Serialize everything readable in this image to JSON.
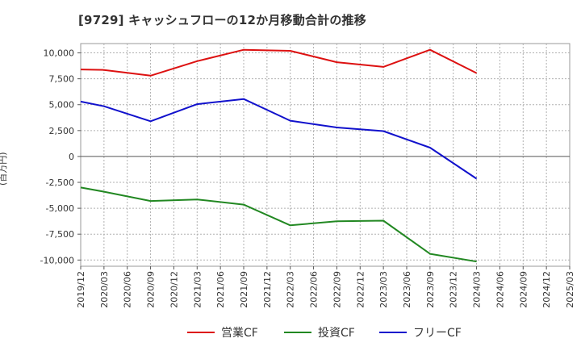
{
  "chart_data": {
    "type": "line",
    "title": "[9729]  キャッシュフローの12か月移動合計の推移",
    "ylabel": "(百万円)",
    "xlabel": "",
    "ylim": [
      -10600,
      10900
    ],
    "y_ticks": [
      10000,
      7500,
      5000,
      2500,
      0,
      -2500,
      -5000,
      -7500,
      -10000
    ],
    "y_tick_labels": [
      "10,000",
      "7,500",
      "5,000",
      "2,500",
      "0",
      "-2,500",
      "-5,000",
      "-7,500",
      "-10,000"
    ],
    "categories": [
      "2019/12",
      "2020/03",
      "2020/06",
      "2020/09",
      "2020/12",
      "2021/03",
      "2021/06",
      "2021/09",
      "2021/12",
      "2022/03",
      "2022/06",
      "2022/09",
      "2022/12",
      "2023/03",
      "2023/06",
      "2023/09",
      "2023/12",
      "2024/03",
      "2024/06",
      "2024/09",
      "2024/12",
      "2025/03"
    ],
    "series": [
      {
        "name": "営業CF",
        "color": "#dd1111",
        "points": [
          [
            0,
            8400
          ],
          [
            1,
            8350
          ],
          [
            3,
            7800
          ],
          [
            5,
            9200
          ],
          [
            7,
            10300
          ],
          [
            9,
            10200
          ],
          [
            11,
            9100
          ],
          [
            13,
            8650
          ],
          [
            15,
            10300
          ],
          [
            17,
            8050
          ]
        ]
      },
      {
        "name": "投資CF",
        "color": "#228822",
        "points": [
          [
            0,
            -3000
          ],
          [
            1,
            -3400
          ],
          [
            3,
            -4300
          ],
          [
            5,
            -4150
          ],
          [
            7,
            -4650
          ],
          [
            9,
            -6650
          ],
          [
            11,
            -6250
          ],
          [
            13,
            -6200
          ],
          [
            15,
            -9400
          ],
          [
            17,
            -10150
          ]
        ]
      },
      {
        "name": "フリーCF",
        "color": "#1111cc",
        "points": [
          [
            0,
            5300
          ],
          [
            1,
            4850
          ],
          [
            3,
            3400
          ],
          [
            5,
            5050
          ],
          [
            7,
            5550
          ],
          [
            9,
            3450
          ],
          [
            11,
            2800
          ],
          [
            13,
            2450
          ],
          [
            15,
            850
          ],
          [
            17,
            -2150
          ]
        ]
      }
    ],
    "grid": true,
    "legend_position": "bottom"
  }
}
